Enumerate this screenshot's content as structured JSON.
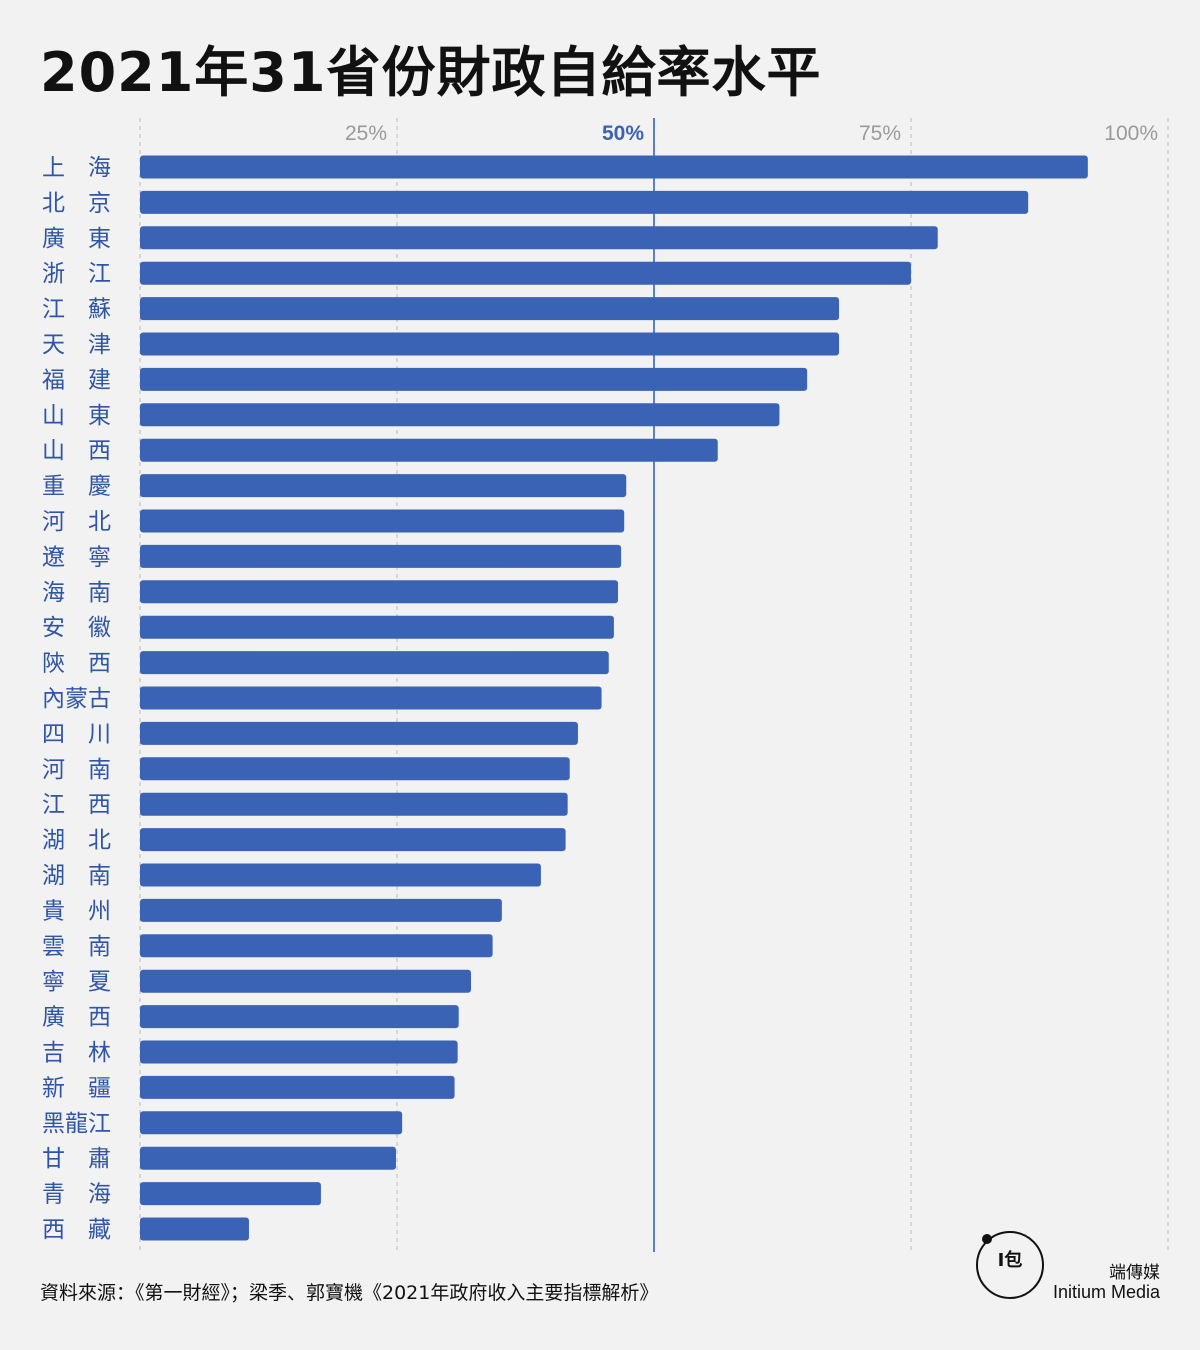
{
  "title": "2021年31省份財政自給率水平",
  "source": "資料來源：《第一財經》；梁季、郭寶機《2021年政府收入主要指標解析》",
  "brand": {
    "name_zh": "端傳媒",
    "name_en": "Initium Media",
    "logo_icon": "initium-logo-icon"
  },
  "colors": {
    "bar": "#3a62b5",
    "label": "#2f55a4",
    "highlight_line": "#3a62b5",
    "tick": "#9a9a9a",
    "grid": "#bbbbbb",
    "background": "#f2f2f2"
  },
  "chart_data": {
    "type": "bar",
    "orientation": "horizontal",
    "title": "2021年31省份財政自給率水平",
    "xlim": [
      0,
      100
    ],
    "x_ticks": [
      "25%",
      "50%",
      "75%",
      "100%"
    ],
    "tick_values": [
      25,
      50,
      75,
      100
    ],
    "highlight_value": 50,
    "grid": true,
    "categories": [
      "上　海",
      "北　京",
      "廣　東",
      "浙　江",
      "江　蘇",
      "天　津",
      "福　建",
      "山　東",
      "山　西",
      "重　慶",
      "河　北",
      "遼　寧",
      "海　南",
      "安　徽",
      "陝　西",
      "內蒙古",
      "四　川",
      "河　南",
      "江　西",
      "湖　北",
      "湖　南",
      "貴　州",
      "雲　南",
      "寧　夏",
      "廣　西",
      "吉　林",
      "新　疆",
      "黑龍江",
      "甘　肅",
      "青　海",
      "西　藏"
    ],
    "values": [
      92.2,
      86.4,
      77.6,
      75.0,
      68.0,
      68.0,
      64.9,
      62.2,
      56.2,
      47.3,
      47.1,
      46.8,
      46.5,
      46.1,
      45.6,
      44.9,
      42.6,
      41.8,
      41.6,
      41.4,
      39.0,
      35.2,
      34.3,
      32.2,
      31.0,
      30.9,
      30.6,
      25.5,
      24.9,
      17.6,
      10.6
    ]
  }
}
